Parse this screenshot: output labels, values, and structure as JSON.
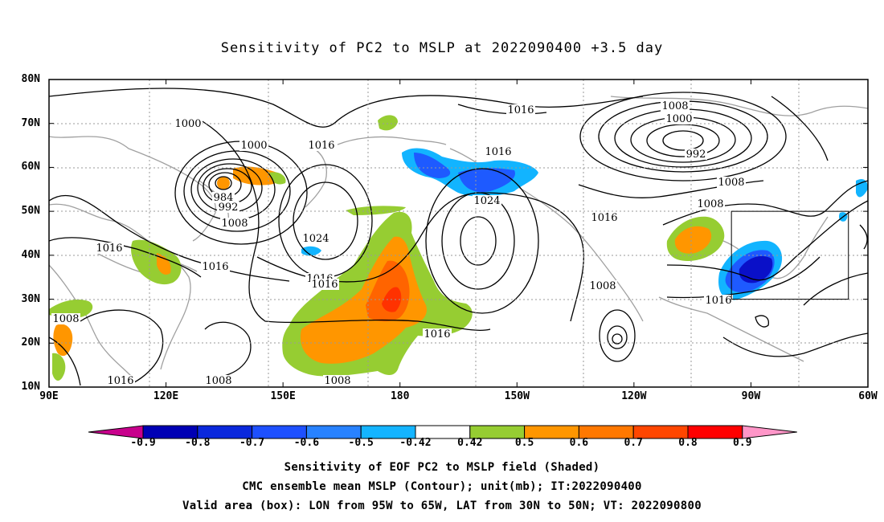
{
  "title": "Sensitivity of PC2 to MSLP at 2022090400 +3.5 day",
  "map": {
    "lon_range": [
      90,
      300
    ],
    "lat_range": [
      10,
      80
    ],
    "lat_labels": [
      "80N",
      "70N",
      "60N",
      "50N",
      "40N",
      "30N",
      "20N",
      "10N"
    ],
    "lon_labels": [
      "90E",
      "120E",
      "150E",
      "180",
      "150W",
      "120W",
      "90W",
      "60W"
    ],
    "box": {
      "lon": [
        265,
        295
      ],
      "lat": [
        30,
        50
      ]
    },
    "contour_labels": [
      "1000",
      "1000",
      "984",
      "992",
      "1008",
      "1016",
      "1016",
      "1016",
      "1016",
      "1016",
      "1024",
      "1024",
      "1016",
      "1016",
      "1016",
      "1008",
      "1008",
      "1016",
      "1008",
      "1008",
      "1000",
      "992",
      "1008",
      "1016",
      "1016",
      "1008",
      "1008"
    ],
    "colors": {
      "neg_strong": "#0a10c8",
      "neg_mid": "#1e5aff",
      "neg_light": "#12b4ff",
      "pos_green": "#96cd32",
      "pos_orange": "#ff9600",
      "pos_deep": "#ff6400",
      "pos_red": "#ff3200"
    }
  },
  "colorbar": {
    "labels": [
      "-0.9",
      "-0.8",
      "-0.7",
      "-0.6",
      "-0.5",
      "-0.42",
      "0.42",
      "0.5",
      "0.6",
      "0.7",
      "0.8",
      "0.9"
    ],
    "colors": [
      "#c8008c",
      "#0000b4",
      "#0a28dc",
      "#1e50ff",
      "#2882ff",
      "#14b4ff",
      "#ffffff",
      "#96cd32",
      "#ff9600",
      "#ff7800",
      "#ff4600",
      "#ff0000",
      "#ff96c8"
    ]
  },
  "captions": [
    "Sensitivity of EOF PC2 to MSLP field (Shaded)",
    "CMC ensemble mean MSLP (Contour); unit(mb); IT:2022090400",
    "Valid area (box): LON from 95W to 65W, LAT from 30N to 50N; VT: 2022090800"
  ]
}
